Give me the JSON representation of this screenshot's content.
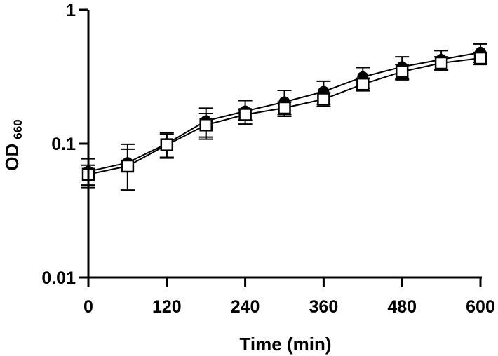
{
  "chart_data": {
    "type": "line",
    "title": "",
    "xlabel": "Time (min)",
    "ylabel": "OD",
    "ylabel_subscript": "660",
    "xlim": [
      0,
      600
    ],
    "ylim": [
      0.01,
      1
    ],
    "yscale": "log",
    "x_ticks": [
      "0",
      "120",
      "240",
      "360",
      "480",
      "600"
    ],
    "y_ticks": [
      "0.01",
      "0.1",
      "1"
    ],
    "grid": false,
    "x": [
      0,
      60,
      120,
      180,
      240,
      300,
      360,
      420,
      480,
      540,
      600
    ],
    "series": [
      {
        "marker": "filled-circle",
        "color": "#000000",
        "values": [
          0.062,
          0.072,
          0.1,
          0.148,
          0.175,
          0.205,
          0.245,
          0.315,
          0.375,
          0.425,
          0.48
        ],
        "errors": [
          0.015,
          0.027,
          0.021,
          0.036,
          0.035,
          0.045,
          0.048,
          0.055,
          0.07,
          0.07,
          0.075
        ]
      },
      {
        "marker": "open-square",
        "color": "#000000",
        "values": [
          0.059,
          0.068,
          0.098,
          0.138,
          0.165,
          0.185,
          0.215,
          0.278,
          0.345,
          0.4,
          0.435
        ],
        "errors": [
          0.01,
          0.023,
          0.02,
          0.03,
          0.015,
          0.02,
          0.025,
          0.03,
          0.045,
          0.045,
          0.045
        ]
      }
    ]
  }
}
